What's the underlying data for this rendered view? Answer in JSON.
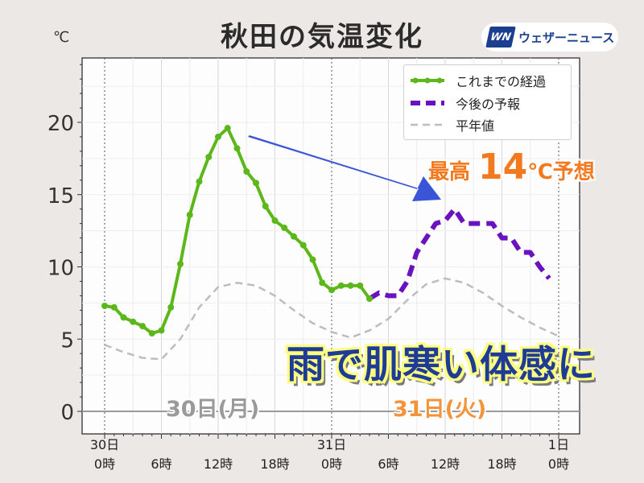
{
  "header": {
    "title": "秋田の気温変化",
    "unit": "℃",
    "brand_mark": "WN",
    "brand_name": "ウェザーニュース"
  },
  "annotations": {
    "max_prefix": "最高",
    "max_value": "14",
    "max_suffix": "℃予想",
    "headline": "雨で肌寒い体感に",
    "day1": "30日(月)",
    "day2": "31日(火)"
  },
  "colors": {
    "observed": "#5cb81a",
    "forecast": "#6a12c0",
    "normal": "#bdbdbd",
    "arrow": "#3a55d6",
    "day1": "#9a9a9a",
    "day2": "#f3933a",
    "max": "#f3791f",
    "headline": "#1e3c96"
  },
  "chart_data": {
    "type": "line",
    "title": "秋田の気温変化",
    "ylabel": "℃",
    "xlim": [
      0,
      48
    ],
    "ylim": [
      -1,
      24.5
    ],
    "yticks": [
      0,
      5,
      10,
      15,
      20
    ],
    "xticks": [
      {
        "x": 0,
        "line1": "30日",
        "line2": "0時"
      },
      {
        "x": 6,
        "line1": "",
        "line2": "6時"
      },
      {
        "x": 12,
        "line1": "",
        "line2": "12時"
      },
      {
        "x": 18,
        "line1": "",
        "line2": "18時"
      },
      {
        "x": 24,
        "line1": "31日",
        "line2": "0時"
      },
      {
        "x": 30,
        "line1": "",
        "line2": "6時"
      },
      {
        "x": 36,
        "line1": "",
        "line2": "12時"
      },
      {
        "x": 42,
        "line1": "",
        "line2": "18時"
      },
      {
        "x": 48,
        "line1": "1日",
        "line2": "0時"
      }
    ],
    "grid": true,
    "legend_position": "top-right",
    "series": [
      {
        "name": "これまでの経過",
        "style": "solid-markers",
        "points": [
          [
            0,
            7.3
          ],
          [
            1,
            7.2
          ],
          [
            2,
            6.5
          ],
          [
            3,
            6.2
          ],
          [
            4,
            5.9
          ],
          [
            5,
            5.4
          ],
          [
            6,
            5.6
          ],
          [
            7,
            7.2
          ],
          [
            8,
            10.2
          ],
          [
            9,
            13.6
          ],
          [
            10,
            15.9
          ],
          [
            11,
            17.6
          ],
          [
            12,
            19.0
          ],
          [
            13,
            19.6
          ],
          [
            14,
            18.2
          ],
          [
            15,
            16.6
          ],
          [
            16,
            15.8
          ],
          [
            17,
            14.2
          ],
          [
            18,
            13.2
          ],
          [
            19,
            12.7
          ],
          [
            20,
            12.1
          ],
          [
            21,
            11.5
          ],
          [
            22,
            10.5
          ],
          [
            23,
            8.9
          ],
          [
            24,
            8.4
          ],
          [
            25,
            8.7
          ],
          [
            26,
            8.7
          ],
          [
            27,
            8.7
          ],
          [
            28,
            7.8
          ]
        ]
      },
      {
        "name": "今後の予報",
        "style": "dashed",
        "points": [
          [
            28,
            7.8
          ],
          [
            29,
            8.2
          ],
          [
            30,
            8.0
          ],
          [
            31,
            8.0
          ],
          [
            32,
            9.0
          ],
          [
            33,
            11.0
          ],
          [
            34,
            12.0
          ],
          [
            35,
            13.0
          ],
          [
            36,
            13.2
          ],
          [
            37,
            14.0
          ],
          [
            38,
            13.0
          ],
          [
            39,
            13.0
          ],
          [
            40,
            13.0
          ],
          [
            41,
            13.0
          ],
          [
            42,
            12.0
          ],
          [
            43,
            12.0
          ],
          [
            44,
            11.0
          ],
          [
            45,
            11.0
          ],
          [
            46,
            10.0
          ],
          [
            47,
            9.2
          ]
        ]
      },
      {
        "name": "平年値",
        "style": "dashed-thin",
        "points": [
          [
            0,
            4.6
          ],
          [
            2,
            4.1
          ],
          [
            4,
            3.7
          ],
          [
            6,
            3.6
          ],
          [
            8,
            5.0
          ],
          [
            10,
            7.2
          ],
          [
            12,
            8.6
          ],
          [
            14,
            8.9
          ],
          [
            16,
            8.7
          ],
          [
            18,
            8.0
          ],
          [
            20,
            7.0
          ],
          [
            22,
            6.1
          ],
          [
            24,
            5.5
          ],
          [
            26,
            5.1
          ],
          [
            28,
            5.6
          ],
          [
            30,
            6.4
          ],
          [
            32,
            7.7
          ],
          [
            34,
            8.8
          ],
          [
            36,
            9.2
          ],
          [
            38,
            8.9
          ],
          [
            40,
            8.2
          ],
          [
            42,
            7.3
          ],
          [
            44,
            6.5
          ],
          [
            46,
            5.8
          ],
          [
            48,
            5.2
          ]
        ]
      }
    ]
  }
}
